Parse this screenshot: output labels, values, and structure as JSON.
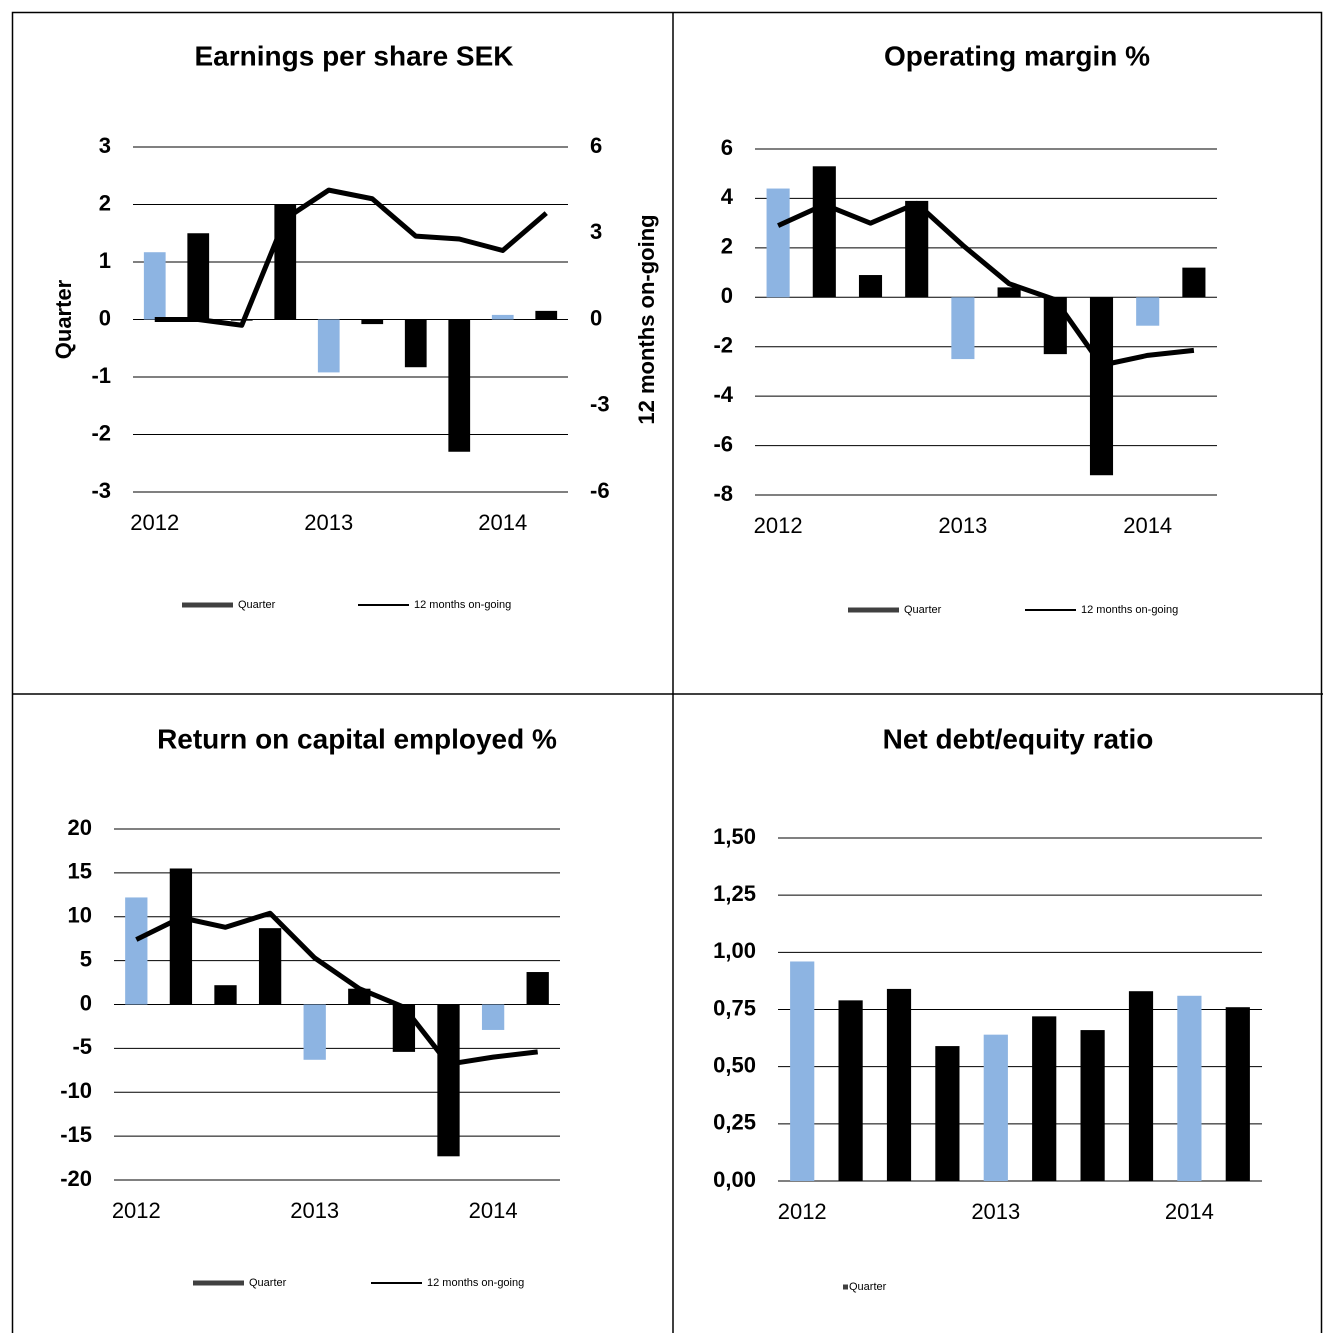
{
  "chart_data": [
    {
      "type": "combo",
      "title": "Earnings per share SEK",
      "ylabel": "Quarter",
      "y2label": "12 months on-going",
      "categories": [
        "2012",
        null,
        null,
        null,
        "2013",
        null,
        null,
        null,
        "2014",
        null
      ],
      "series": [
        {
          "name": "Quarter",
          "type": "bar",
          "color": "#404040",
          "colors": [
            "#8db4e2",
            "#000000",
            "#000000",
            "#000000",
            "#8db4e2",
            "#000000",
            "#000000",
            "#000000",
            "#8db4e2",
            "#000000"
          ],
          "values": [
            1.17,
            1.5,
            -0.02,
            2.0,
            -0.92,
            -0.08,
            -0.83,
            -2.3,
            0.08,
            0.15
          ]
        },
        {
          "name": "12 months on-going",
          "type": "line",
          "color": "#000000",
          "axis": "y2",
          "values": [
            0,
            0,
            -0.2,
            3.5,
            4.5,
            4.2,
            2.9,
            2.8,
            2.4,
            3.7
          ]
        }
      ],
      "ylim": [
        -3,
        3
      ],
      "yticks": [
        -3,
        -2,
        -1,
        0,
        1,
        2,
        3
      ],
      "y2lim": [
        -6,
        6
      ],
      "y2ticks": [
        -6,
        -3,
        0,
        3,
        6
      ],
      "grid": true
    },
    {
      "type": "combo",
      "title": "Operating margin %",
      "categories": [
        "2012",
        null,
        null,
        null,
        "2013",
        null,
        null,
        null,
        "2014",
        null
      ],
      "series": [
        {
          "name": "Quarter",
          "type": "bar",
          "color": "#404040",
          "colors": [
            "#8db4e2",
            "#000000",
            "#000000",
            "#000000",
            "#8db4e2",
            "#000000",
            "#000000",
            "#000000",
            "#8db4e2",
            "#000000"
          ],
          "values": [
            4.4,
            5.3,
            0.9,
            3.9,
            -2.5,
            0.4,
            -2.3,
            -7.2,
            -1.15,
            1.2
          ]
        },
        {
          "name": "12 months on-going",
          "type": "line",
          "color": "#000000",
          "values": [
            2.9,
            3.75,
            3.0,
            3.8,
            2.1,
            0.55,
            -0.1,
            -2.75,
            -2.35,
            -2.15
          ]
        }
      ],
      "ylim": [
        -8,
        6
      ],
      "yticks": [
        -8,
        -6,
        -4,
        -2,
        0,
        2,
        4,
        6
      ],
      "grid": true
    },
    {
      "type": "combo",
      "title": "Return on capital employed %",
      "categories": [
        "2012",
        null,
        null,
        null,
        "2013",
        null,
        null,
        null,
        "2014",
        null
      ],
      "series": [
        {
          "name": "Quarter",
          "type": "bar",
          "color": "#404040",
          "colors": [
            "#8db4e2",
            "#000000",
            "#000000",
            "#000000",
            "#8db4e2",
            "#000000",
            "#000000",
            "#000000",
            "#8db4e2",
            "#000000"
          ],
          "values": [
            12.2,
            15.5,
            2.2,
            8.7,
            -6.3,
            1.8,
            -5.4,
            -17.3,
            -2.9,
            3.7
          ]
        },
        {
          "name": "12 months on-going",
          "type": "line",
          "color": "#000000",
          "values": [
            7.4,
            9.9,
            8.8,
            10.4,
            5.3,
            1.8,
            -0.3,
            -6.8,
            -6.0,
            -5.4
          ]
        }
      ],
      "ylim": [
        -20,
        20
      ],
      "yticks": [
        -20,
        -15,
        -10,
        -5,
        0,
        5,
        10,
        15,
        20
      ],
      "grid": true
    },
    {
      "type": "bar",
      "title": "Net debt/equity ratio",
      "categories": [
        "2012",
        null,
        null,
        null,
        "2013",
        null,
        null,
        null,
        "2014",
        null
      ],
      "series": [
        {
          "name": "Quarter",
          "type": "bar",
          "color": "#404040",
          "colors": [
            "#8db4e2",
            "#000000",
            "#000000",
            "#000000",
            "#8db4e2",
            "#000000",
            "#000000",
            "#000000",
            "#8db4e2",
            "#000000"
          ],
          "values": [
            0.96,
            0.79,
            0.84,
            0.59,
            0.64,
            0.72,
            0.66,
            0.83,
            0.81,
            0.76
          ]
        }
      ],
      "ylim": [
        0,
        1.5
      ],
      "yticks": [
        {
          "value": 0,
          "label": "0,00"
        },
        {
          "value": 0.25,
          "label": "0,25"
        },
        {
          "value": 0.5,
          "label": "0,50"
        },
        {
          "value": 0.75,
          "label": "0,75"
        },
        {
          "value": 1,
          "label": "1,00"
        },
        {
          "value": 1.25,
          "label": "1,25"
        },
        {
          "value": 1.5,
          "label": "1,50"
        }
      ],
      "grid": true
    }
  ]
}
